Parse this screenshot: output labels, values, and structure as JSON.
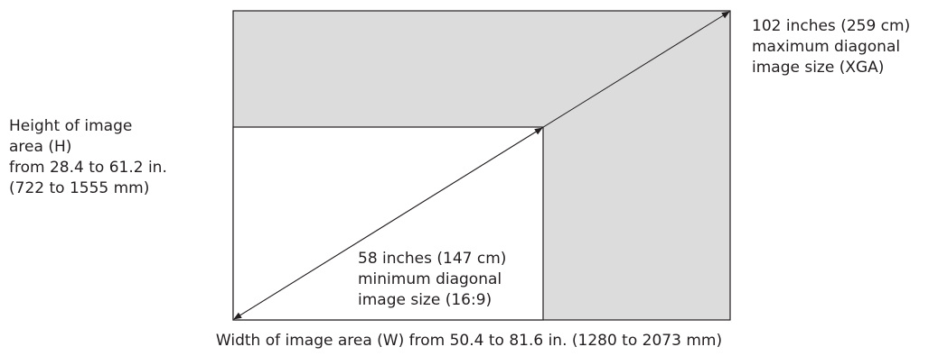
{
  "diagram": {
    "max_label": [
      "102 inches (259 cm)",
      "maximum diagonal",
      "image size (XGA)"
    ],
    "height_label": [
      "Height of image",
      "area (H)",
      "from 28.4 to 61.2 in.",
      "(722 to 1555 mm)"
    ],
    "min_label": [
      "58 inches (147 cm)",
      "minimum diagonal",
      "image size (16:9)"
    ],
    "width_label": "Width of image area (W) from 50.4 to 81.6 in. (1280 to 2073 mm)",
    "colors": {
      "max_area": "#dcdcdc",
      "min_area": "#ffffff",
      "line": "#231f20",
      "text": "#231f20"
    }
  }
}
